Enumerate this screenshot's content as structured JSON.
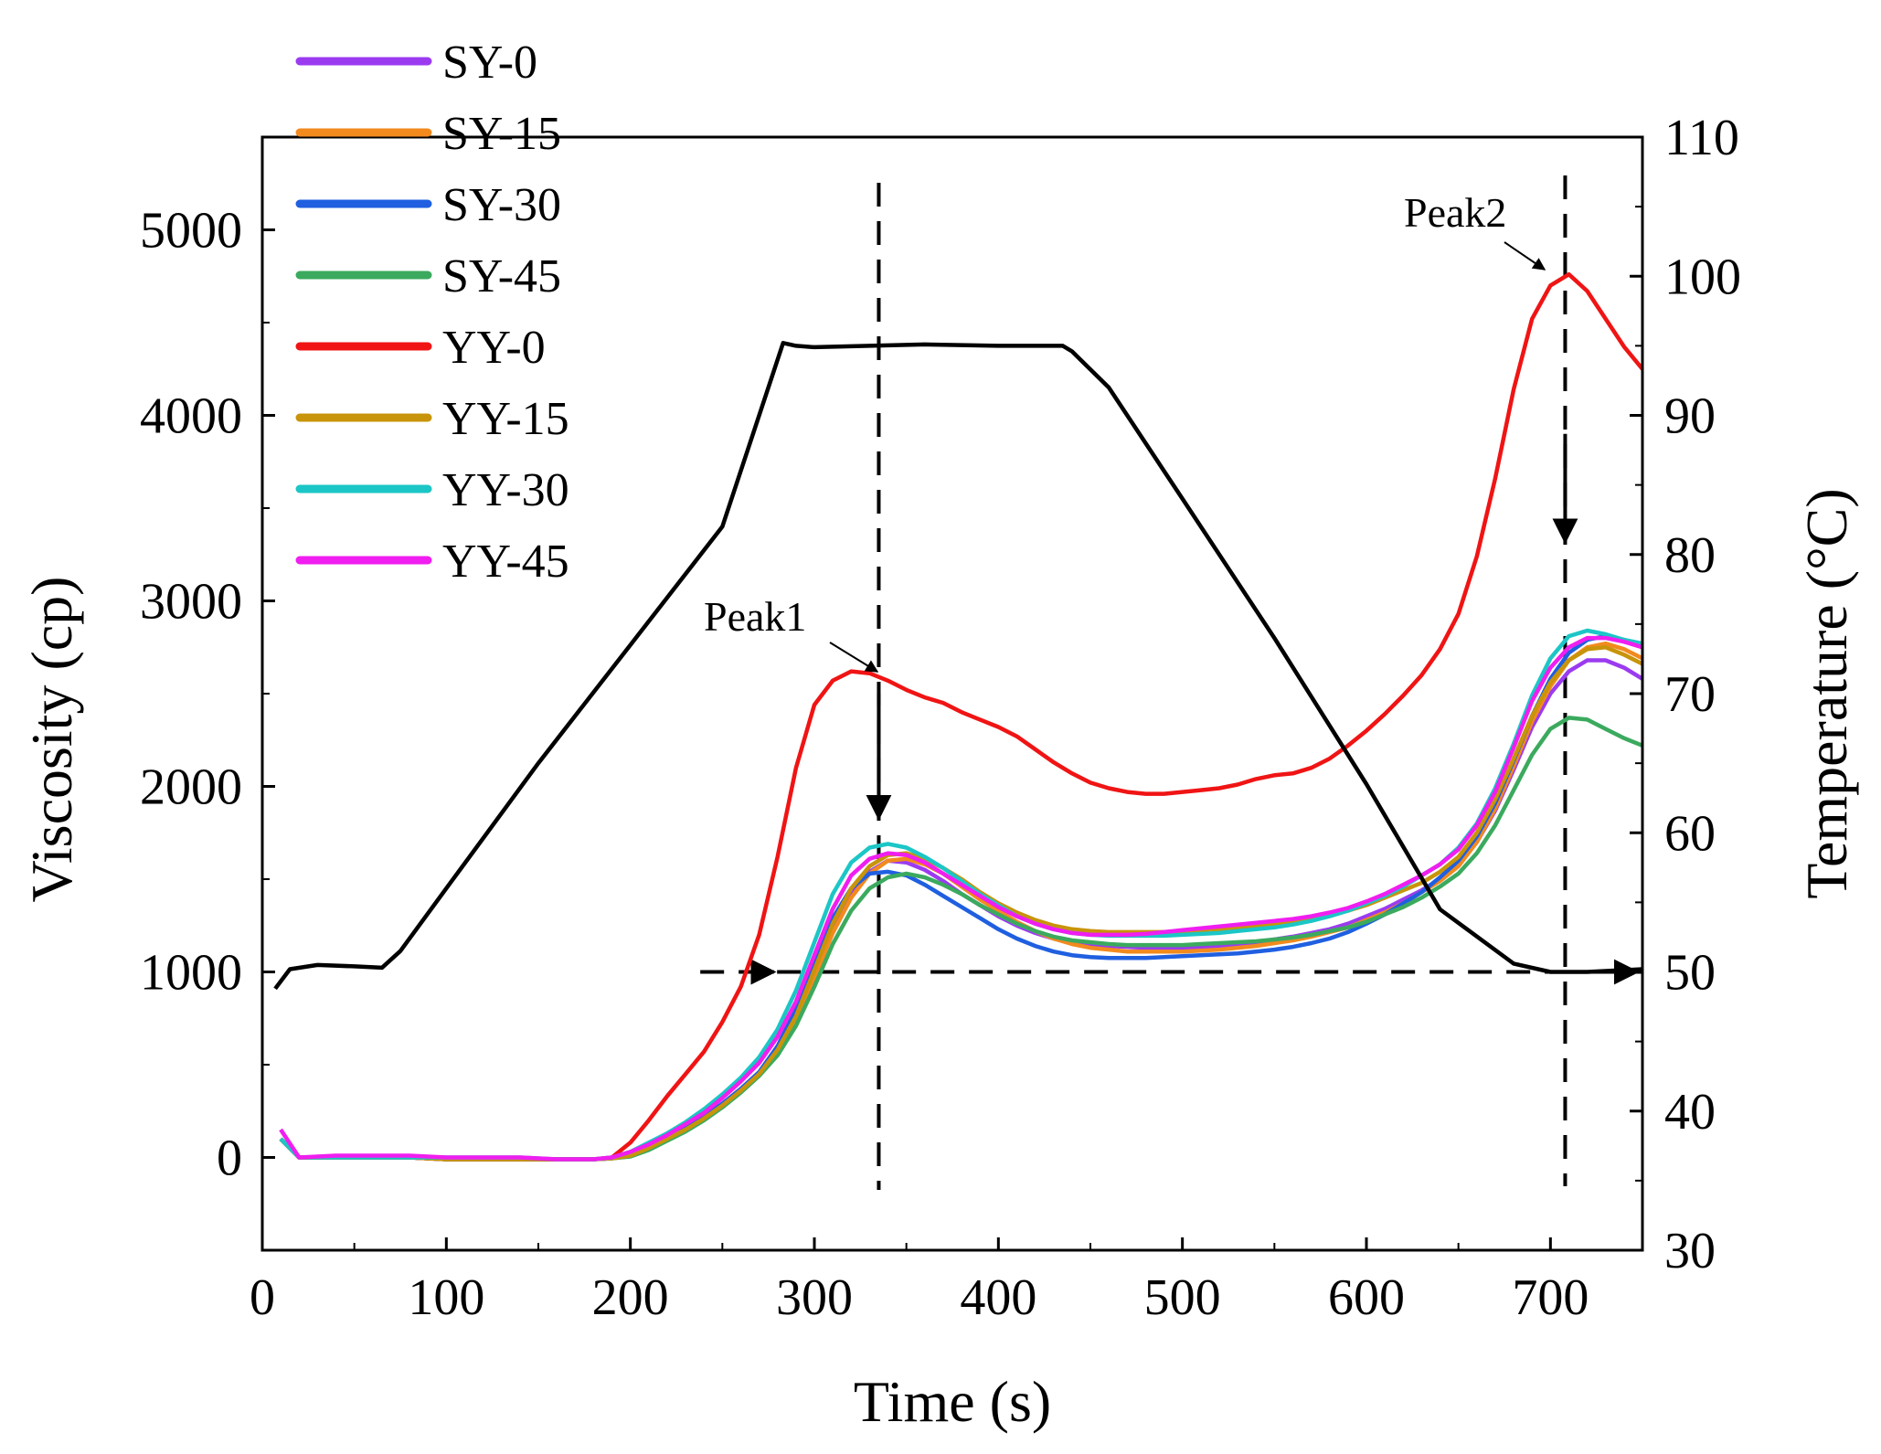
{
  "chart_data": {
    "type": "line",
    "xlabel": "Time (s)",
    "ylabel": "Viscosity (cp)",
    "y2label": "Temperature (°C)",
    "xlim": [
      0,
      750
    ],
    "ylim": [
      -500,
      5500
    ],
    "y2lim": [
      30,
      110
    ],
    "xticks": [
      0,
      100,
      200,
      300,
      400,
      500,
      600,
      700
    ],
    "yticks": [
      0,
      1000,
      2000,
      3000,
      4000,
      5000
    ],
    "y2ticks": [
      30,
      40,
      50,
      60,
      70,
      80,
      90,
      100,
      110
    ],
    "x": [
      10,
      20,
      40,
      60,
      80,
      100,
      120,
      140,
      160,
      180,
      190,
      200,
      210,
      220,
      230,
      240,
      250,
      260,
      270,
      280,
      290,
      300,
      310,
      320,
      330,
      340,
      350,
      360,
      370,
      380,
      390,
      400,
      410,
      420,
      430,
      440,
      450,
      460,
      470,
      480,
      490,
      500,
      510,
      520,
      530,
      540,
      550,
      560,
      570,
      580,
      590,
      600,
      610,
      620,
      630,
      640,
      650,
      660,
      670,
      680,
      690,
      700,
      710,
      720,
      730,
      740,
      750
    ],
    "series": [
      {
        "name": "SY-0",
        "color": "#9B3BF0",
        "values": [
          100,
          0,
          0,
          0,
          0,
          -10,
          -10,
          -10,
          -10,
          -10,
          -5,
          10,
          50,
          100,
          150,
          210,
          280,
          360,
          450,
          580,
          760,
          1000,
          1240,
          1420,
          1540,
          1600,
          1590,
          1550,
          1490,
          1420,
          1360,
          1300,
          1250,
          1210,
          1180,
          1160,
          1150,
          1140,
          1135,
          1130,
          1130,
          1130,
          1135,
          1140,
          1150,
          1160,
          1175,
          1190,
          1210,
          1230,
          1260,
          1300,
          1340,
          1390,
          1440,
          1500,
          1580,
          1700,
          1870,
          2090,
          2320,
          2500,
          2620,
          2680,
          2680,
          2640,
          2580
        ]
      },
      {
        "name": "SY-15",
        "color": "#F28A1E",
        "values": [
          100,
          0,
          0,
          0,
          0,
          -10,
          -10,
          -10,
          -10,
          -10,
          -5,
          10,
          50,
          100,
          150,
          210,
          280,
          360,
          450,
          570,
          740,
          970,
          1210,
          1400,
          1530,
          1600,
          1610,
          1580,
          1530,
          1460,
          1390,
          1330,
          1270,
          1220,
          1180,
          1150,
          1130,
          1120,
          1110,
          1110,
          1110,
          1110,
          1115,
          1120,
          1130,
          1140,
          1155,
          1170,
          1190,
          1215,
          1240,
          1280,
          1320,
          1370,
          1430,
          1490,
          1570,
          1700,
          1880,
          2110,
          2350,
          2540,
          2680,
          2750,
          2770,
          2740,
          2690
        ]
      },
      {
        "name": "SY-30",
        "color": "#1F5FE0",
        "values": [
          100,
          0,
          0,
          0,
          0,
          -10,
          -10,
          -10,
          -10,
          -10,
          -5,
          20,
          60,
          110,
          160,
          220,
          290,
          370,
          460,
          600,
          800,
          1060,
          1290,
          1450,
          1530,
          1540,
          1520,
          1470,
          1410,
          1350,
          1290,
          1230,
          1180,
          1140,
          1110,
          1090,
          1080,
          1075,
          1075,
          1075,
          1080,
          1085,
          1090,
          1095,
          1100,
          1110,
          1120,
          1135,
          1155,
          1180,
          1215,
          1260,
          1310,
          1370,
          1430,
          1510,
          1600,
          1730,
          1910,
          2140,
          2380,
          2580,
          2720,
          2790,
          2810,
          2790,
          2760
        ]
      },
      {
        "name": "SY-45",
        "color": "#3BAA5E",
        "values": [
          100,
          0,
          0,
          0,
          0,
          -10,
          -10,
          -10,
          -10,
          -10,
          -5,
          5,
          40,
          90,
          140,
          200,
          270,
          350,
          440,
          550,
          710,
          920,
          1150,
          1330,
          1450,
          1510,
          1530,
          1510,
          1470,
          1420,
          1360,
          1310,
          1260,
          1220,
          1190,
          1170,
          1160,
          1150,
          1145,
          1145,
          1145,
          1145,
          1150,
          1155,
          1160,
          1165,
          1175,
          1185,
          1200,
          1220,
          1240,
          1270,
          1310,
          1350,
          1400,
          1460,
          1530,
          1640,
          1790,
          1980,
          2170,
          2310,
          2370,
          2360,
          2310,
          2260,
          2220
        ]
      },
      {
        "name": "YY-0",
        "color": "#F01414",
        "values": [
          100,
          0,
          0,
          0,
          0,
          -10,
          -10,
          -10,
          -10,
          -10,
          0,
          80,
          200,
          330,
          450,
          570,
          730,
          920,
          1200,
          1620,
          2100,
          2440,
          2570,
          2620,
          2610,
          2570,
          2520,
          2480,
          2450,
          2400,
          2360,
          2320,
          2270,
          2200,
          2130,
          2070,
          2020,
          1990,
          1970,
          1960,
          1960,
          1970,
          1980,
          1990,
          2010,
          2040,
          2060,
          2070,
          2100,
          2150,
          2220,
          2300,
          2390,
          2490,
          2600,
          2740,
          2930,
          3240,
          3660,
          4140,
          4520,
          4700,
          4760,
          4670,
          4520,
          4370,
          4250
        ]
      },
      {
        "name": "YY-15",
        "color": "#C8940A",
        "values": [
          100,
          0,
          0,
          0,
          0,
          -10,
          -10,
          -10,
          -10,
          -10,
          -5,
          10,
          50,
          100,
          150,
          210,
          280,
          360,
          450,
          580,
          760,
          1010,
          1260,
          1450,
          1570,
          1630,
          1640,
          1610,
          1560,
          1500,
          1430,
          1370,
          1320,
          1280,
          1250,
          1230,
          1220,
          1215,
          1215,
          1215,
          1215,
          1215,
          1220,
          1225,
          1235,
          1245,
          1255,
          1270,
          1290,
          1310,
          1330,
          1360,
          1400,
          1440,
          1480,
          1540,
          1620,
          1750,
          1930,
          2150,
          2380,
          2560,
          2680,
          2740,
          2750,
          2710,
          2660
        ]
      },
      {
        "name": "YY-30",
        "color": "#1CC6C6",
        "values": [
          100,
          0,
          0,
          0,
          0,
          0,
          0,
          0,
          -10,
          -10,
          0,
          30,
          80,
          130,
          190,
          260,
          340,
          430,
          540,
          690,
          900,
          1160,
          1420,
          1590,
          1670,
          1690,
          1670,
          1620,
          1560,
          1490,
          1420,
          1360,
          1300,
          1260,
          1230,
          1210,
          1200,
          1195,
          1195,
          1195,
          1195,
          1200,
          1205,
          1210,
          1220,
          1230,
          1240,
          1255,
          1275,
          1300,
          1330,
          1370,
          1410,
          1460,
          1520,
          1580,
          1670,
          1800,
          1990,
          2230,
          2490,
          2690,
          2810,
          2840,
          2820,
          2790,
          2770
        ]
      },
      {
        "name": "YY-45",
        "color": "#F01EF0",
        "values": [
          150,
          0,
          10,
          10,
          10,
          0,
          0,
          0,
          -10,
          -10,
          0,
          30,
          70,
          120,
          180,
          240,
          320,
          410,
          510,
          650,
          840,
          1090,
          1340,
          1520,
          1610,
          1640,
          1630,
          1590,
          1530,
          1470,
          1410,
          1350,
          1300,
          1260,
          1230,
          1210,
          1200,
          1200,
          1200,
          1205,
          1215,
          1225,
          1235,
          1245,
          1255,
          1265,
          1275,
          1285,
          1300,
          1320,
          1345,
          1380,
          1420,
          1470,
          1520,
          1580,
          1660,
          1790,
          1970,
          2210,
          2460,
          2640,
          2750,
          2800,
          2800,
          2780,
          2750
        ]
      }
    ],
    "temperature": {
      "name": "Temperature",
      "color": "#000000",
      "x": [
        7,
        15,
        30,
        50,
        65,
        75,
        100,
        150,
        200,
        250,
        283,
        290,
        300,
        330,
        360,
        400,
        435,
        440,
        460,
        500,
        550,
        600,
        640,
        680,
        700,
        720,
        750
      ],
      "values": [
        48.8,
        50.2,
        50.5,
        50.4,
        50.3,
        51.5,
        56,
        65,
        73.5,
        82,
        95.2,
        95,
        94.9,
        95,
        95.1,
        95,
        95,
        94.6,
        92,
        84,
        74,
        63.5,
        54.5,
        50.6,
        50,
        50,
        50.2
      ]
    },
    "annotations": [
      {
        "text": "Peak1"
      },
      {
        "text": "Peak2"
      }
    ]
  },
  "legend": [
    {
      "label": "SY-0",
      "color": "#9B3BF0"
    },
    {
      "label": "SY-15",
      "color": "#F28A1E"
    },
    {
      "label": "SY-30",
      "color": "#1F5FE0"
    },
    {
      "label": "SY-45",
      "color": "#3BAA5E"
    },
    {
      "label": "YY-0",
      "color": "#F01414"
    },
    {
      "label": "YY-15",
      "color": "#C8940A"
    },
    {
      "label": "YY-30",
      "color": "#1CC6C6"
    },
    {
      "label": "YY-45",
      "color": "#F01EF0"
    }
  ]
}
